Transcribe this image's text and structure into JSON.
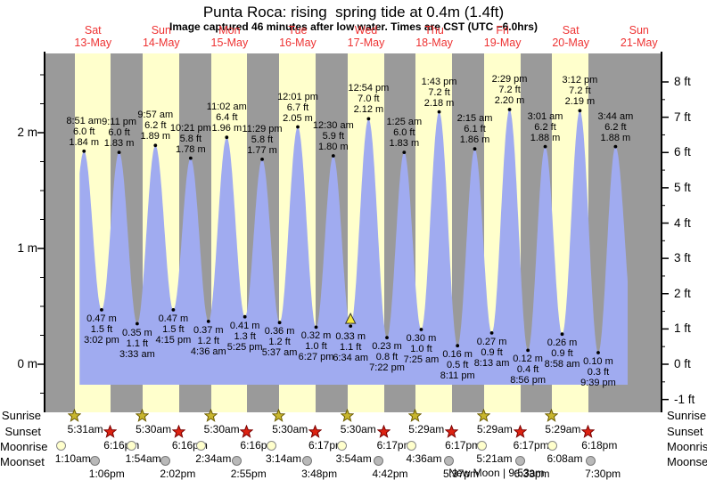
{
  "title": "Punta Roca: rising  spring tide at 0.4m (1.4ft)",
  "subtitle": "Image captured 46 minutes after low water. Times are CST (UTC −6.0hrs)",
  "colors": {
    "day_band": "#ffffcc",
    "night_band": "#9a9a9a",
    "tide_fill": "#a0abf0",
    "header_red": "#ee3333",
    "axis": "#000000",
    "sunrise_star_fill": "#c8b62e",
    "sunrise_star_stroke": "#6b5c00",
    "sunset_star_fill": "#dd2211",
    "sunset_star_stroke": "#7a0000",
    "moonrise_fill": "#ffffcc",
    "moonrise_stroke": "#888888",
    "moonset_fill": "#b9b9b9",
    "moonset_stroke": "#777777",
    "marker_fill": "#f5e73e",
    "marker_stroke": "#333333"
  },
  "chart_data": {
    "type": "area",
    "title": "Punta Roca tide height",
    "x_unit": "hours since Sat 13-May 00:00 (CST)",
    "ylabel_left": "metres",
    "ylabel_right": "feet",
    "ylim_m": [
      -0.55,
      2.69
    ],
    "y_axis_left": [
      {
        "label": "2 m",
        "h": 2
      },
      {
        "label": "1 m",
        "h": 1
      },
      {
        "label": "0 m",
        "h": 0
      }
    ],
    "y_axis_right": [
      {
        "label": "8 ft",
        "ft": 8
      },
      {
        "label": "7 ft",
        "ft": 7
      },
      {
        "label": "6 ft",
        "ft": 6
      },
      {
        "label": "5 ft",
        "ft": 5
      },
      {
        "label": "4 ft",
        "ft": 4
      },
      {
        "label": "3 ft",
        "ft": 3
      },
      {
        "label": "2 ft",
        "ft": 2
      },
      {
        "label": "1 ft",
        "ft": 1
      },
      {
        "label": "0 ft",
        "ft": 0
      },
      {
        "label": "-1 ft",
        "ft": -1
      }
    ],
    "days": [
      {
        "name": "Sat",
        "date": "13-May",
        "noon_t": 12
      },
      {
        "name": "Sun",
        "date": "14-May",
        "noon_t": 36
      },
      {
        "name": "Mon",
        "date": "15-May",
        "noon_t": 60
      },
      {
        "name": "Tue",
        "date": "16-May",
        "noon_t": 84
      },
      {
        "name": "Wed",
        "date": "17-May",
        "noon_t": 108
      },
      {
        "name": "Thu",
        "date": "18-May",
        "noon_t": 132
      },
      {
        "name": "Fri",
        "date": "19-May",
        "noon_t": 156
      },
      {
        "name": "Sat",
        "date": "20-May",
        "noon_t": 180
      },
      {
        "name": "Sun",
        "date": "21-May",
        "noon_t": 204
      }
    ],
    "extremes": [
      {
        "kind": "high",
        "time": "8:51 am",
        "ft": "6.0 ft",
        "m": "1.84 m",
        "t": 8.85,
        "h": 1.84
      },
      {
        "kind": "low",
        "time": "3:02 pm",
        "ft": "1.5 ft",
        "m": "0.47 m",
        "t": 15.033,
        "h": 0.47
      },
      {
        "kind": "high",
        "time": "9:11 pm",
        "ft": "6.0 ft",
        "m": "1.83 m",
        "t": 21.183,
        "h": 1.83
      },
      {
        "kind": "low",
        "time": "3:33 am",
        "ft": "1.1 ft",
        "m": "0.35 m",
        "t": 27.55,
        "h": 0.35
      },
      {
        "kind": "high",
        "time": "9:57 am",
        "ft": "6.2 ft",
        "m": "1.89 m",
        "t": 33.95,
        "h": 1.89
      },
      {
        "kind": "low",
        "time": "4:15 pm",
        "ft": "1.5 ft",
        "m": "0.47 m",
        "t": 40.25,
        "h": 0.47
      },
      {
        "kind": "high",
        "time": "10:21 pm",
        "ft": "5.8 ft",
        "m": "1.78 m",
        "t": 46.35,
        "h": 1.78
      },
      {
        "kind": "low",
        "time": "4:36 am",
        "ft": "1.2 ft",
        "m": "0.37 m",
        "t": 52.6,
        "h": 0.37
      },
      {
        "kind": "high",
        "time": "11:02 am",
        "ft": "6.4 ft",
        "m": "1.96 m",
        "t": 59.033,
        "h": 1.96
      },
      {
        "kind": "low",
        "time": "5:25 pm",
        "ft": "1.3 ft",
        "m": "0.41 m",
        "t": 65.417,
        "h": 0.41
      },
      {
        "kind": "high",
        "time": "11:29 pm",
        "ft": "5.8 ft",
        "m": "1.77 m",
        "t": 71.483,
        "h": 1.77
      },
      {
        "kind": "low",
        "time": "5:37 am",
        "ft": "1.2 ft",
        "m": "0.36 m",
        "t": 77.617,
        "h": 0.36
      },
      {
        "kind": "high",
        "time": "12:01 pm",
        "ft": "6.7 ft",
        "m": "2.05 m",
        "t": 84.017,
        "h": 2.05
      },
      {
        "kind": "low",
        "time": "6:27 pm",
        "ft": "1.0 ft",
        "m": "0.32 m",
        "t": 90.45,
        "h": 0.32
      },
      {
        "kind": "high",
        "time": "12:30 am",
        "ft": "5.9 ft",
        "m": "1.80 m",
        "t": 96.5,
        "h": 1.8
      },
      {
        "kind": "low",
        "time": "6:34 am",
        "ft": "1.1 ft",
        "m": "0.33 m",
        "t": 102.567,
        "h": 0.33,
        "marker": true
      },
      {
        "kind": "high",
        "time": "12:54 pm",
        "ft": "7.0 ft",
        "m": "2.12 m",
        "t": 108.9,
        "h": 2.12
      },
      {
        "kind": "low",
        "time": "7:22 pm",
        "ft": "0.8 ft",
        "m": "0.23 m",
        "t": 115.367,
        "h": 0.23
      },
      {
        "kind": "high",
        "time": "1:25 am",
        "ft": "6.0 ft",
        "m": "1.83 m",
        "t": 121.417,
        "h": 1.83
      },
      {
        "kind": "low",
        "time": "7:25 am",
        "ft": "1.0 ft",
        "m": "0.30 m",
        "t": 127.417,
        "h": 0.3
      },
      {
        "kind": "high",
        "time": "1:43 pm",
        "ft": "7.2 ft",
        "m": "2.18 m",
        "t": 133.717,
        "h": 2.18
      },
      {
        "kind": "low",
        "time": "8:11 pm",
        "ft": "0.5 ft",
        "m": "0.16 m",
        "t": 140.183,
        "h": 0.16
      },
      {
        "kind": "high",
        "time": "2:15 am",
        "ft": "6.1 ft",
        "m": "1.86 m",
        "t": 146.25,
        "h": 1.86
      },
      {
        "kind": "low",
        "time": "8:13 am",
        "ft": "0.9 ft",
        "m": "0.27 m",
        "t": 152.217,
        "h": 0.27
      },
      {
        "kind": "high",
        "time": "2:29 pm",
        "ft": "7.2 ft",
        "m": "2.20 m",
        "t": 158.483,
        "h": 2.2
      },
      {
        "kind": "low",
        "time": "8:56 pm",
        "ft": "0.4 ft",
        "m": "0.12 m",
        "t": 164.933,
        "h": 0.12
      },
      {
        "kind": "high",
        "time": "3:01 am",
        "ft": "6.2 ft",
        "m": "1.88 m",
        "t": 171.017,
        "h": 1.88
      },
      {
        "kind": "low",
        "time": "8:58 am",
        "ft": "0.9 ft",
        "m": "0.26 m",
        "t": 176.967,
        "h": 0.26
      },
      {
        "kind": "high",
        "time": "3:12 pm",
        "ft": "7.2 ft",
        "m": "2.19 m",
        "t": 183.2,
        "h": 2.19
      },
      {
        "kind": "low",
        "time": "9:39 pm",
        "ft": "0.3 ft",
        "m": "0.10 m",
        "t": 189.65,
        "h": 0.1
      },
      {
        "kind": "high",
        "time": "3:44 am",
        "ft": "6.2 ft",
        "m": "1.88 m",
        "t": 195.733,
        "h": 1.88
      }
    ],
    "curve": {
      "data_start_t": 7.3,
      "data_end_t": 200,
      "lead_virtual_low": {
        "t": 2.2,
        "h": 0.35
      },
      "tail_virtual_low": {
        "t": 202.3,
        "h": 0.28
      }
    },
    "current_marker": {
      "time": "6:34 am",
      "t": 102.567,
      "h": 0.33
    }
  },
  "almanac": {
    "row_labels": {
      "sunrise": "Sunrise",
      "sunset": "Sunset",
      "moonrise": "Moonrise",
      "moonset": "Moonset"
    },
    "sunrise": [
      {
        "time": "5:31am",
        "t": 5.517
      },
      {
        "time": "5:30am",
        "t": 29.5
      },
      {
        "time": "5:30am",
        "t": 53.5
      },
      {
        "time": "5:30am",
        "t": 77.5
      },
      {
        "time": "5:30am",
        "t": 101.5
      },
      {
        "time": "5:29am",
        "t": 125.483
      },
      {
        "time": "5:29am",
        "t": 149.483
      },
      {
        "time": "5:29am",
        "t": 173.483
      }
    ],
    "sunset": [
      {
        "time": "6:16pm",
        "t": 18.267
      },
      {
        "time": "6:16pm",
        "t": 42.267
      },
      {
        "time": "6:16pm",
        "t": 66.267
      },
      {
        "time": "6:17pm",
        "t": 90.283
      },
      {
        "time": "6:17pm",
        "t": 114.283
      },
      {
        "time": "6:17pm",
        "t": 138.283
      },
      {
        "time": "6:17pm",
        "t": 162.283
      },
      {
        "time": "6:18pm",
        "t": 186.3
      }
    ],
    "moonrise": [
      {
        "time": "1:10am",
        "t": 1.167
      },
      {
        "time": "1:54am",
        "t": 25.9
      },
      {
        "time": "2:34am",
        "t": 50.567
      },
      {
        "time": "3:14am",
        "t": 75.233
      },
      {
        "time": "3:54am",
        "t": 99.9
      },
      {
        "time": "4:36am",
        "t": 124.6
      },
      {
        "time": "5:21am",
        "t": 149.35
      },
      {
        "time": "6:08am",
        "t": 174.133
      }
    ],
    "moonset": [
      {
        "time": "1:06pm",
        "t": 13.1
      },
      {
        "time": "2:02pm",
        "t": 38.033
      },
      {
        "time": "2:55pm",
        "t": 62.917
      },
      {
        "time": "3:48pm",
        "t": 87.8
      },
      {
        "time": "4:42pm",
        "t": 112.7
      },
      {
        "time": "5:37pm",
        "t": 137.617
      },
      {
        "time": "6:33pm",
        "t": 162.55
      },
      {
        "time": "7:30pm",
        "t": 187.5
      }
    ],
    "new_moon": {
      "label": "New Moon | 9:53am",
      "t": 153.883
    }
  }
}
